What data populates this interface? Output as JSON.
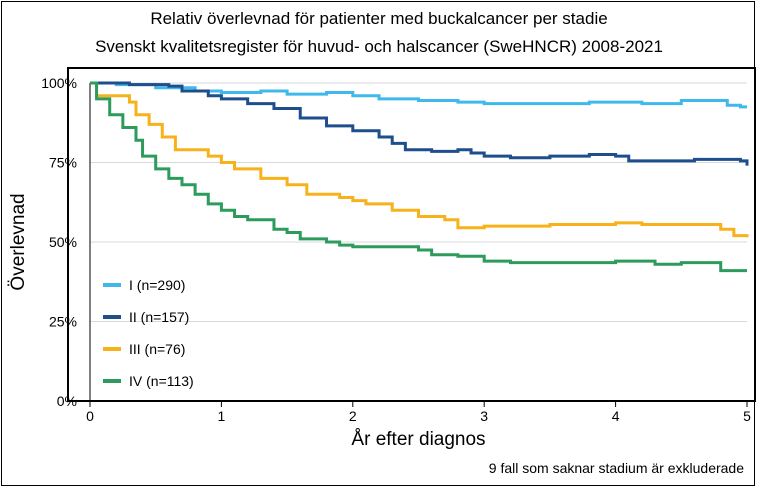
{
  "chart_data": {
    "type": "line",
    "step": true,
    "title": "Relativ överlevnad för patienter med buckalcancer per stadie",
    "subtitle": "Svenskt kvalitetsregister för huvud- och halscancer (SweHNCR) 2008-2021",
    "xlabel": "År efter diagnos",
    "ylabel": "Överlevnad",
    "xlim": [
      0,
      5
    ],
    "ylim": [
      0,
      100
    ],
    "x_ticks": [
      "0",
      "1",
      "2",
      "3",
      "4",
      "5"
    ],
    "y_ticks": [
      "0%",
      "25%",
      "50%",
      "75%",
      "100%"
    ],
    "grid": "horizontal",
    "legend_position": "bottom-left",
    "note": "9 fall som saknar stadium är exkluderade",
    "series": [
      {
        "name": "I (n=290)",
        "color": "#3fb8ec",
        "points": [
          [
            0,
            100
          ],
          [
            0.2,
            99.5
          ],
          [
            0.5,
            98.5
          ],
          [
            0.8,
            97.5
          ],
          [
            1.0,
            97
          ],
          [
            1.3,
            97.5
          ],
          [
            1.5,
            96.5
          ],
          [
            1.8,
            97
          ],
          [
            2.0,
            96
          ],
          [
            2.2,
            95
          ],
          [
            2.5,
            94.5
          ],
          [
            2.8,
            94
          ],
          [
            3.0,
            93.5
          ],
          [
            3.5,
            93.5
          ],
          [
            3.8,
            94
          ],
          [
            4.0,
            94
          ],
          [
            4.2,
            93.5
          ],
          [
            4.5,
            94.5
          ],
          [
            4.7,
            94.5
          ],
          [
            4.85,
            93
          ],
          [
            4.95,
            92.5
          ],
          [
            5.0,
            92.5
          ]
        ]
      },
      {
        "name": "II (n=157)",
        "color": "#1f4e8c",
        "points": [
          [
            0,
            100
          ],
          [
            0.3,
            99.5
          ],
          [
            0.6,
            99
          ],
          [
            0.7,
            97.5
          ],
          [
            0.9,
            96
          ],
          [
            1.0,
            95
          ],
          [
            1.2,
            93.5
          ],
          [
            1.4,
            92
          ],
          [
            1.6,
            89
          ],
          [
            1.8,
            86.5
          ],
          [
            2.0,
            85
          ],
          [
            2.2,
            83
          ],
          [
            2.3,
            81
          ],
          [
            2.4,
            79
          ],
          [
            2.6,
            78.5
          ],
          [
            2.8,
            79
          ],
          [
            2.9,
            78
          ],
          [
            3.0,
            77
          ],
          [
            3.2,
            76.5
          ],
          [
            3.5,
            77
          ],
          [
            3.8,
            77.5
          ],
          [
            4.0,
            77
          ],
          [
            4.1,
            75.5
          ],
          [
            4.3,
            75.5
          ],
          [
            4.6,
            76
          ],
          [
            4.8,
            76
          ],
          [
            4.95,
            75.5
          ],
          [
            5.0,
            74
          ]
        ]
      },
      {
        "name": "III (n=76)",
        "color": "#f7b21b",
        "points": [
          [
            0,
            100
          ],
          [
            0.05,
            96
          ],
          [
            0.3,
            94
          ],
          [
            0.35,
            90
          ],
          [
            0.45,
            87
          ],
          [
            0.55,
            83
          ],
          [
            0.65,
            79
          ],
          [
            0.85,
            79
          ],
          [
            0.9,
            77
          ],
          [
            1.0,
            75
          ],
          [
            1.1,
            73
          ],
          [
            1.3,
            70
          ],
          [
            1.5,
            68
          ],
          [
            1.65,
            65
          ],
          [
            1.9,
            64
          ],
          [
            2.0,
            63
          ],
          [
            2.1,
            62
          ],
          [
            2.3,
            60
          ],
          [
            2.5,
            58
          ],
          [
            2.7,
            57
          ],
          [
            2.8,
            54.5
          ],
          [
            3.0,
            55
          ],
          [
            3.5,
            55.5
          ],
          [
            4.0,
            56
          ],
          [
            4.2,
            55.5
          ],
          [
            4.5,
            55.5
          ],
          [
            4.8,
            54
          ],
          [
            4.9,
            52
          ],
          [
            5.0,
            51.5
          ]
        ]
      },
      {
        "name": "IV (n=113)",
        "color": "#2c9b5c",
        "points": [
          [
            0,
            100
          ],
          [
            0.05,
            95
          ],
          [
            0.15,
            90
          ],
          [
            0.25,
            86
          ],
          [
            0.35,
            82
          ],
          [
            0.4,
            77
          ],
          [
            0.5,
            73
          ],
          [
            0.6,
            70
          ],
          [
            0.7,
            68
          ],
          [
            0.8,
            65
          ],
          [
            0.9,
            62
          ],
          [
            1.0,
            60
          ],
          [
            1.1,
            58
          ],
          [
            1.2,
            57
          ],
          [
            1.4,
            54
          ],
          [
            1.5,
            53
          ],
          [
            1.6,
            51
          ],
          [
            1.8,
            50
          ],
          [
            1.9,
            49
          ],
          [
            2.0,
            48.5
          ],
          [
            2.3,
            48.5
          ],
          [
            2.5,
            47.5
          ],
          [
            2.6,
            46
          ],
          [
            2.8,
            45.5
          ],
          [
            3.0,
            44
          ],
          [
            3.2,
            43.5
          ],
          [
            3.5,
            43.5
          ],
          [
            3.8,
            43.5
          ],
          [
            4.0,
            44
          ],
          [
            4.2,
            44
          ],
          [
            4.3,
            43
          ],
          [
            4.5,
            43.5
          ],
          [
            4.7,
            43.5
          ],
          [
            4.8,
            41
          ],
          [
            5.0,
            41
          ]
        ]
      }
    ]
  }
}
